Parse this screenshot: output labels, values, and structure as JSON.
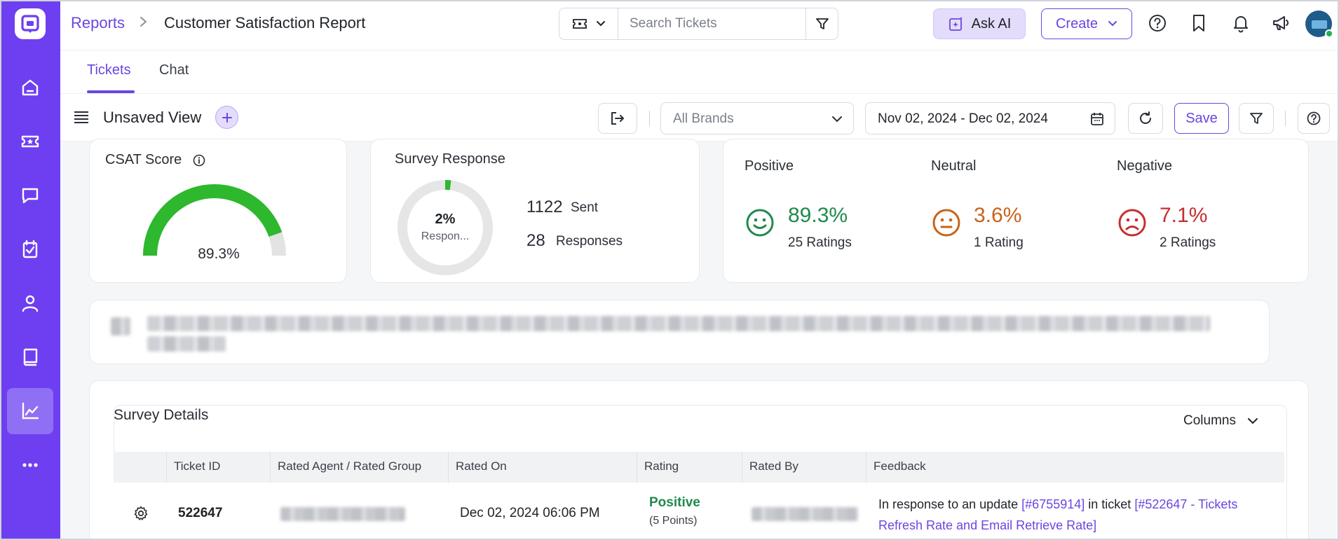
{
  "breadcrumb": {
    "parent": "Reports",
    "separator": ">",
    "current": "Customer Satisfaction Report"
  },
  "search": {
    "placeholder": "Search Tickets"
  },
  "header": {
    "ask_ai": "Ask AI",
    "create": "Create"
  },
  "tabs": [
    {
      "label": "Tickets",
      "active": true
    },
    {
      "label": "Chat",
      "active": false
    }
  ],
  "toolbar": {
    "view_title": "Unsaved View",
    "brand_placeholder": "All Brands",
    "date_range": "Nov 02, 2024 - Dec 02, 2024",
    "save": "Save"
  },
  "csat": {
    "title": "CSAT Score",
    "score": "89.3%",
    "score_fraction": 0.893
  },
  "survey": {
    "title": "Survey Response",
    "rate": "2%",
    "rate_label": "Respon...",
    "rate_fraction": 0.02,
    "sent_count": "1122",
    "sent_label": "Sent",
    "responses_count": "28",
    "responses_label": "Responses"
  },
  "sentiment": {
    "positive": {
      "title": "Positive",
      "pct": "89.3%",
      "count": "25 Ratings",
      "color": "#1f8a4c"
    },
    "neutral": {
      "title": "Neutral",
      "pct": "3.6%",
      "count": "1 Rating",
      "color": "#c9631a"
    },
    "negative": {
      "title": "Negative",
      "pct": "7.1%",
      "count": "2 Ratings",
      "color": "#c62f2f"
    }
  },
  "details": {
    "title": "Survey Details",
    "columns_button": "Columns",
    "columns": [
      "Ticket ID",
      "Rated Agent / Rated Group",
      "Rated On",
      "Rating",
      "Rated By",
      "Feedback"
    ],
    "rows": [
      {
        "ticket_id": "522647",
        "rated_on": "Dec 02, 2024 06:06 PM",
        "rating": "Positive",
        "points": "(5 Points)",
        "feedback_prefix": "In response to an update",
        "feedback_link1": "[#6755914]",
        "feedback_mid": "in ticket",
        "feedback_link2": "[#522647 - Tickets Refresh Rate and Email Retrieve Rate]"
      }
    ]
  },
  "colors": {
    "brand": "#6e3ff0",
    "accent": "#6b46e0",
    "gauge_fill": "#2db82d",
    "gauge_track": "#e3e3e3"
  }
}
